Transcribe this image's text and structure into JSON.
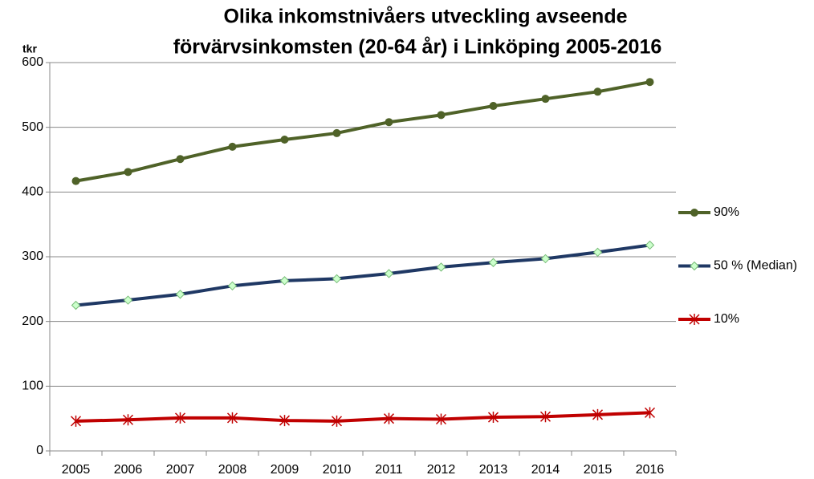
{
  "chart_data": {
    "type": "line",
    "title": [
      "Olika inkomstnivåers utveckling avseende",
      "förvärvsinkomsten (20-64 år) i Linköping 2005-2016"
    ],
    "ylabel": "tkr",
    "categories": [
      "2005",
      "2006",
      "2007",
      "2008",
      "2009",
      "2010",
      "2011",
      "2012",
      "2013",
      "2014",
      "2015",
      "2016"
    ],
    "series": [
      {
        "name": "90%",
        "color": "#4f6228",
        "marker": "circle",
        "values": [
          417,
          431,
          451,
          470,
          481,
          491,
          508,
          519,
          533,
          544,
          555,
          570
        ]
      },
      {
        "name": "50 % (Median)",
        "color": "#1f3864",
        "marker": "diamond",
        "values": [
          225,
          233,
          242,
          255,
          263,
          266,
          274,
          284,
          291,
          297,
          307,
          318
        ]
      },
      {
        "name": "10%",
        "color": "#c00000",
        "marker": "star",
        "values": [
          46,
          48,
          51,
          51,
          47,
          46,
          50,
          49,
          52,
          53,
          56,
          59
        ]
      }
    ],
    "ylim": [
      0,
      600
    ],
    "yticks": [
      0,
      100,
      200,
      300,
      400,
      500,
      600
    ],
    "grid": true,
    "legend": "right"
  }
}
